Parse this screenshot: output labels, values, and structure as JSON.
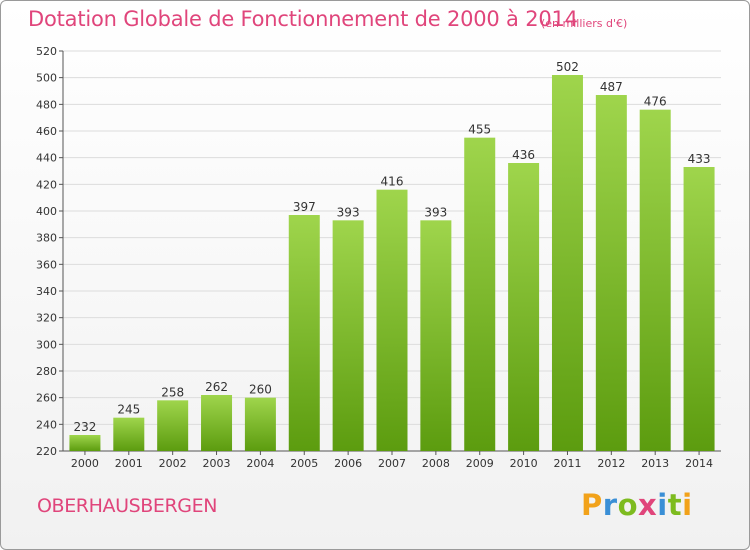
{
  "title": "Dotation Globale de Fonctionnement de 2000 à 2014",
  "subtitle": "(en milliers d'€)",
  "commune": "OBERHAUSBERGEN",
  "brand": {
    "letters": [
      "P",
      "r",
      "o",
      "x",
      "i",
      "t",
      "i"
    ],
    "colors": [
      "#f2a21a",
      "#3a8fd6",
      "#7dbb1f",
      "#e0457b",
      "#3a8fd6",
      "#7dbb1f",
      "#f2a21a"
    ]
  },
  "colors": {
    "accent": "#e0457b",
    "bar_top": "#9fd54c",
    "bar_bottom": "#5c9c0f"
  },
  "chart_data": {
    "type": "bar",
    "categories": [
      "2000",
      "2001",
      "2002",
      "2003",
      "2004",
      "2005",
      "2006",
      "2007",
      "2008",
      "2009",
      "2010",
      "2011",
      "2012",
      "2013",
      "2014"
    ],
    "values": [
      232,
      245,
      258,
      262,
      260,
      397,
      393,
      416,
      393,
      455,
      436,
      502,
      487,
      476,
      433
    ],
    "data_labels": [
      "232",
      "245",
      "258",
      "262",
      "260",
      "397",
      "393",
      "416",
      "393",
      "455",
      "436",
      "502",
      "487",
      "476",
      "433"
    ],
    "ylim": [
      220,
      520
    ],
    "yticks": [
      220,
      240,
      260,
      280,
      300,
      320,
      340,
      360,
      380,
      400,
      420,
      440,
      460,
      480,
      500,
      520
    ],
    "grid": true,
    "xlabel": "",
    "ylabel": ""
  }
}
